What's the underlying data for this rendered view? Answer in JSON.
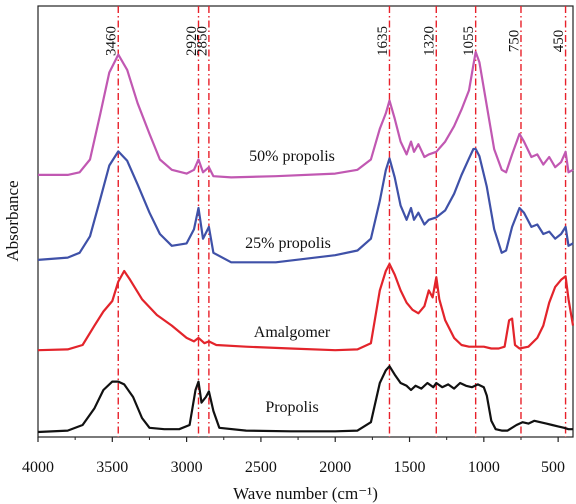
{
  "chart_data": {
    "type": "line",
    "xlabel": "Wave number (cm⁻¹)",
    "ylabel": "Absorbance",
    "xlim": [
      4000,
      400
    ],
    "x_reversed": true,
    "x_ticks": [
      4000,
      3500,
      3000,
      2500,
      2000,
      1500,
      1000,
      500
    ],
    "y_ticks": [],
    "grid": false,
    "legend": "inline labels",
    "peak_markers": [
      {
        "label": "3460",
        "x": 3460
      },
      {
        "label": "2920",
        "x": 2920
      },
      {
        "label": "2850",
        "x": 2850
      },
      {
        "label": "1635",
        "x": 1635
      },
      {
        "label": "1320",
        "x": 1320
      },
      {
        "label": "1055",
        "x": 1055
      },
      {
        "label": "750",
        "x": 750
      },
      {
        "label": "450",
        "x": 450
      }
    ],
    "marker_style": {
      "color": "#e8202a",
      "dash": "dash-dot"
    },
    "series": [
      {
        "name": "50% propolis",
        "color": "#c158b2",
        "points": [
          [
            4000,
            0.04
          ],
          [
            3800,
            0.04
          ],
          [
            3720,
            0.06
          ],
          [
            3650,
            0.16
          ],
          [
            3580,
            0.52
          ],
          [
            3520,
            0.84
          ],
          [
            3460,
            0.98
          ],
          [
            3400,
            0.86
          ],
          [
            3330,
            0.6
          ],
          [
            3250,
            0.36
          ],
          [
            3180,
            0.16
          ],
          [
            3100,
            0.08
          ],
          [
            3000,
            0.05
          ],
          [
            2950,
            0.08
          ],
          [
            2920,
            0.16
          ],
          [
            2890,
            0.06
          ],
          [
            2850,
            0.1
          ],
          [
            2820,
            0.03
          ],
          [
            2700,
            0.02
          ],
          [
            2400,
            0.03
          ],
          [
            2000,
            0.05
          ],
          [
            1850,
            0.08
          ],
          [
            1760,
            0.16
          ],
          [
            1700,
            0.4
          ],
          [
            1660,
            0.52
          ],
          [
            1635,
            0.62
          ],
          [
            1600,
            0.48
          ],
          [
            1560,
            0.3
          ],
          [
            1520,
            0.2
          ],
          [
            1490,
            0.3
          ],
          [
            1470,
            0.22
          ],
          [
            1440,
            0.28
          ],
          [
            1400,
            0.18
          ],
          [
            1370,
            0.2
          ],
          [
            1320,
            0.22
          ],
          [
            1260,
            0.3
          ],
          [
            1200,
            0.42
          ],
          [
            1150,
            0.55
          ],
          [
            1100,
            0.7
          ],
          [
            1070,
            0.9
          ],
          [
            1055,
            1.0
          ],
          [
            1030,
            0.92
          ],
          [
            980,
            0.58
          ],
          [
            930,
            0.24
          ],
          [
            880,
            0.08
          ],
          [
            850,
            0.06
          ],
          [
            810,
            0.2
          ],
          [
            760,
            0.36
          ],
          [
            730,
            0.3
          ],
          [
            680,
            0.18
          ],
          [
            640,
            0.2
          ],
          [
            600,
            0.12
          ],
          [
            560,
            0.18
          ],
          [
            520,
            0.1
          ],
          [
            480,
            0.14
          ],
          [
            450,
            0.22
          ],
          [
            430,
            0.06
          ],
          [
            400,
            0.08
          ]
        ]
      },
      {
        "name": "25% propolis",
        "color": "#3f51a8",
        "points": [
          [
            4000,
            0.06
          ],
          [
            3800,
            0.08
          ],
          [
            3720,
            0.12
          ],
          [
            3650,
            0.26
          ],
          [
            3580,
            0.58
          ],
          [
            3520,
            0.86
          ],
          [
            3460,
            0.98
          ],
          [
            3400,
            0.9
          ],
          [
            3330,
            0.7
          ],
          [
            3250,
            0.46
          ],
          [
            3180,
            0.28
          ],
          [
            3100,
            0.18
          ],
          [
            3000,
            0.2
          ],
          [
            2950,
            0.32
          ],
          [
            2920,
            0.5
          ],
          [
            2890,
            0.24
          ],
          [
            2850,
            0.34
          ],
          [
            2820,
            0.12
          ],
          [
            2700,
            0.04
          ],
          [
            2400,
            0.04
          ],
          [
            2000,
            0.1
          ],
          [
            1850,
            0.14
          ],
          [
            1760,
            0.24
          ],
          [
            1700,
            0.56
          ],
          [
            1660,
            0.82
          ],
          [
            1635,
            0.92
          ],
          [
            1600,
            0.76
          ],
          [
            1560,
            0.52
          ],
          [
            1520,
            0.4
          ],
          [
            1490,
            0.5
          ],
          [
            1470,
            0.4
          ],
          [
            1440,
            0.46
          ],
          [
            1400,
            0.36
          ],
          [
            1370,
            0.4
          ],
          [
            1320,
            0.42
          ],
          [
            1260,
            0.48
          ],
          [
            1200,
            0.62
          ],
          [
            1150,
            0.78
          ],
          [
            1100,
            0.92
          ],
          [
            1070,
            1.0
          ],
          [
            1055,
            1.0
          ],
          [
            1030,
            0.94
          ],
          [
            980,
            0.68
          ],
          [
            930,
            0.32
          ],
          [
            880,
            0.12
          ],
          [
            850,
            0.14
          ],
          [
            810,
            0.34
          ],
          [
            760,
            0.5
          ],
          [
            730,
            0.46
          ],
          [
            680,
            0.34
          ],
          [
            640,
            0.36
          ],
          [
            600,
            0.28
          ],
          [
            560,
            0.3
          ],
          [
            520,
            0.24
          ],
          [
            480,
            0.28
          ],
          [
            450,
            0.34
          ],
          [
            430,
            0.18
          ],
          [
            400,
            0.2
          ]
        ]
      },
      {
        "name": "Amalgomer",
        "color": "#e3242b",
        "points": [
          [
            4000,
            0.02
          ],
          [
            3800,
            0.03
          ],
          [
            3700,
            0.08
          ],
          [
            3620,
            0.3
          ],
          [
            3560,
            0.46
          ],
          [
            3500,
            0.58
          ],
          [
            3460,
            0.8
          ],
          [
            3420,
            0.92
          ],
          [
            3380,
            0.82
          ],
          [
            3300,
            0.6
          ],
          [
            3200,
            0.42
          ],
          [
            3100,
            0.3
          ],
          [
            3000,
            0.16
          ],
          [
            2950,
            0.12
          ],
          [
            2920,
            0.16
          ],
          [
            2880,
            0.1
          ],
          [
            2850,
            0.12
          ],
          [
            2800,
            0.08
          ],
          [
            2600,
            0.06
          ],
          [
            2300,
            0.04
          ],
          [
            2000,
            0.02
          ],
          [
            1850,
            0.03
          ],
          [
            1760,
            0.1
          ],
          [
            1700,
            0.7
          ],
          [
            1660,
            0.92
          ],
          [
            1635,
            1.0
          ],
          [
            1600,
            0.88
          ],
          [
            1560,
            0.7
          ],
          [
            1520,
            0.56
          ],
          [
            1480,
            0.48
          ],
          [
            1440,
            0.44
          ],
          [
            1400,
            0.52
          ],
          [
            1370,
            0.7
          ],
          [
            1345,
            0.62
          ],
          [
            1320,
            0.85
          ],
          [
            1300,
            0.6
          ],
          [
            1260,
            0.36
          ],
          [
            1200,
            0.16
          ],
          [
            1150,
            0.08
          ],
          [
            1100,
            0.06
          ],
          [
            1050,
            0.06
          ],
          [
            1000,
            0.06
          ],
          [
            950,
            0.04
          ],
          [
            900,
            0.04
          ],
          [
            860,
            0.06
          ],
          [
            830,
            0.36
          ],
          [
            810,
            0.38
          ],
          [
            790,
            0.08
          ],
          [
            760,
            0.04
          ],
          [
            700,
            0.06
          ],
          [
            640,
            0.16
          ],
          [
            600,
            0.3
          ],
          [
            560,
            0.56
          ],
          [
            520,
            0.74
          ],
          [
            480,
            0.82
          ],
          [
            450,
            0.86
          ],
          [
            430,
            0.6
          ],
          [
            400,
            0.3
          ]
        ]
      },
      {
        "name": "Propolis",
        "color": "#111111",
        "points": [
          [
            4000,
            0.0
          ],
          [
            3800,
            0.02
          ],
          [
            3700,
            0.1
          ],
          [
            3620,
            0.34
          ],
          [
            3560,
            0.6
          ],
          [
            3500,
            0.72
          ],
          [
            3460,
            0.72
          ],
          [
            3420,
            0.68
          ],
          [
            3360,
            0.5
          ],
          [
            3300,
            0.2
          ],
          [
            3250,
            0.06
          ],
          [
            3150,
            0.04
          ],
          [
            3050,
            0.04
          ],
          [
            2980,
            0.1
          ],
          [
            2940,
            0.6
          ],
          [
            2920,
            0.72
          ],
          [
            2900,
            0.42
          ],
          [
            2870,
            0.5
          ],
          [
            2850,
            0.58
          ],
          [
            2820,
            0.3
          ],
          [
            2780,
            0.06
          ],
          [
            2600,
            0.02
          ],
          [
            2300,
            0.01
          ],
          [
            2000,
            0.01
          ],
          [
            1850,
            0.02
          ],
          [
            1760,
            0.14
          ],
          [
            1700,
            0.7
          ],
          [
            1660,
            0.88
          ],
          [
            1635,
            0.94
          ],
          [
            1600,
            0.82
          ],
          [
            1560,
            0.7
          ],
          [
            1520,
            0.66
          ],
          [
            1490,
            0.6
          ],
          [
            1460,
            0.66
          ],
          [
            1420,
            0.62
          ],
          [
            1380,
            0.7
          ],
          [
            1340,
            0.64
          ],
          [
            1320,
            0.7
          ],
          [
            1280,
            0.64
          ],
          [
            1240,
            0.68
          ],
          [
            1200,
            0.62
          ],
          [
            1160,
            0.7
          ],
          [
            1120,
            0.66
          ],
          [
            1080,
            0.64
          ],
          [
            1040,
            0.68
          ],
          [
            1000,
            0.64
          ],
          [
            980,
            0.52
          ],
          [
            950,
            0.16
          ],
          [
            920,
            0.04
          ],
          [
            880,
            0.02
          ],
          [
            840,
            0.02
          ],
          [
            780,
            0.1
          ],
          [
            740,
            0.14
          ],
          [
            700,
            0.12
          ],
          [
            660,
            0.16
          ],
          [
            620,
            0.14
          ],
          [
            580,
            0.12
          ],
          [
            540,
            0.1
          ],
          [
            500,
            0.08
          ],
          [
            460,
            0.06
          ],
          [
            430,
            0.04
          ],
          [
            400,
            0.04
          ]
        ]
      }
    ]
  }
}
